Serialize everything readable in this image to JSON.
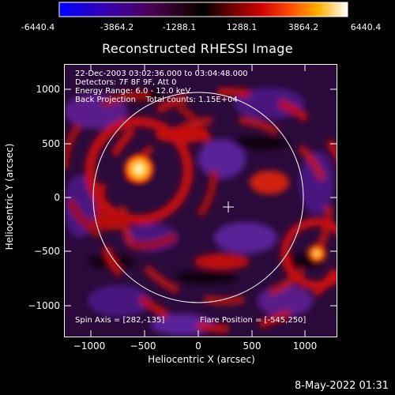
{
  "colorbar": {
    "ticks": [
      "-6440.4",
      "-3864.2",
      "-1288.1",
      "1288.1",
      "3864.2",
      "6440.4"
    ]
  },
  "title": "Reconstructed RHESSI Image",
  "axes": {
    "ylabel": "Heliocentric Y (arcsec)",
    "xlabel": "Heliocentric X (arcsec)",
    "yticks": [
      "1000",
      "500",
      "0",
      "−500",
      "−1000"
    ],
    "xticks": [
      "−1000",
      "−500",
      "0",
      "500",
      "1000"
    ],
    "ylim": [
      -1100,
      1250
    ],
    "xlim": [
      -1250,
      1300
    ]
  },
  "info": {
    "time_range": "22-Dec-2003 03:02:36.000 to 03:04:48.000",
    "detectors": "Detectors: 7F 8F 9F, Att 0",
    "energy_range": "Energy Range: 6.0 - 12.0 keV",
    "method_counts": "Back Projection    Total counts: 1.15E+04",
    "spin_axis": "Spin Axis = [282,-135]",
    "flare_position": "Flare Position = [-545,250]"
  },
  "footer": {
    "date": "8-May-2022 01:31"
  },
  "colors": {
    "background": "#000000",
    "foreground": "#ffffff"
  }
}
